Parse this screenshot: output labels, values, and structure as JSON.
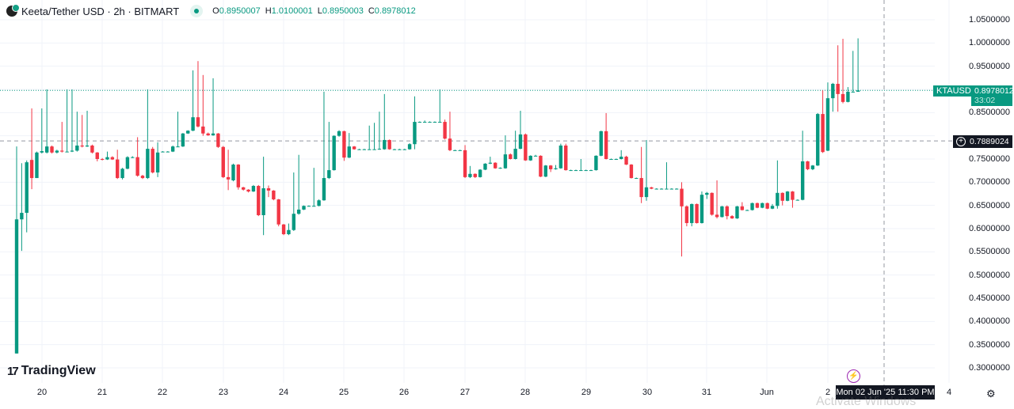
{
  "header": {
    "title": "Keeta/Tether USD · 2h · BITMART",
    "o_label": "O",
    "o": "0.8950007",
    "h_label": "H",
    "h": "1.0100001",
    "l_label": "L",
    "l": "0.8950003",
    "c_label": "C",
    "c": "0.8978012"
  },
  "price_axis": {
    "labels": [
      {
        "p": 1.05,
        "t": "1.0500000"
      },
      {
        "p": 1.0,
        "t": "1.0000000"
      },
      {
        "p": 0.95,
        "t": "0.9500000"
      },
      {
        "p": 0.85,
        "t": "0.8500000"
      },
      {
        "p": 0.75,
        "t": "0.7500000"
      },
      {
        "p": 0.7,
        "t": "0.7000000"
      },
      {
        "p": 0.65,
        "t": "0.6500000"
      },
      {
        "p": 0.6,
        "t": "0.6000000"
      },
      {
        "p": 0.55,
        "t": "0.5500000"
      },
      {
        "p": 0.5,
        "t": "0.5000000"
      },
      {
        "p": 0.45,
        "t": "0.4500000"
      },
      {
        "p": 0.4,
        "t": "0.4000000"
      },
      {
        "p": 0.35,
        "t": "0.3500000"
      },
      {
        "p": 0.3,
        "t": "0.3000000"
      }
    ]
  },
  "last_price": {
    "symbol": "KTAUSDT",
    "price": "0.8978012",
    "value": 0.8978012,
    "countdown": "33:02"
  },
  "crosshair": {
    "price": "0.7889024",
    "value": 0.7889024,
    "time": "Mon 02 Jun '25   11:30 PM"
  },
  "time_axis": {
    "labels": [
      "20",
      "21",
      "22",
      "23",
      "24",
      "25",
      "26",
      "27",
      "28",
      "29",
      "30",
      "31",
      "Jun",
      "2",
      "4"
    ]
  },
  "branding": {
    "logo": "TradingView"
  },
  "watermark": "Activate Windows",
  "colors": {
    "up": "#089981",
    "down": "#f23645",
    "grid": "#f0f3fa"
  },
  "chart_data": {
    "type": "candlestick",
    "interval": "2h",
    "ylim": [
      0.28,
      1.07
    ],
    "ohlc": [
      [
        0.331,
        0.777,
        0.331,
        0.62
      ],
      [
        0.62,
        0.741,
        0.552,
        0.634
      ],
      [
        0.634,
        0.747,
        0.592,
        0.743
      ],
      [
        0.748,
        0.859,
        0.685,
        0.709
      ],
      [
        0.709,
        0.766,
        0.709,
        0.764
      ],
      [
        0.764,
        0.859,
        0.762,
        0.767
      ],
      [
        0.764,
        0.9,
        0.762,
        0.777
      ],
      [
        0.777,
        0.779,
        0.762,
        0.764
      ],
      [
        0.764,
        0.77,
        0.762,
        0.768
      ],
      [
        0.768,
        0.83,
        0.764,
        0.766
      ],
      [
        0.766,
        0.9,
        0.765,
        0.766
      ],
      [
        0.766,
        0.9,
        0.765,
        0.768
      ],
      [
        0.768,
        0.852,
        0.766,
        0.779
      ],
      [
        0.779,
        0.845,
        0.775,
        0.777
      ],
      [
        0.777,
        0.854,
        0.776,
        0.779
      ],
      [
        0.779,
        0.781,
        0.762,
        0.764
      ],
      [
        0.764,
        0.765,
        0.745,
        0.75
      ],
      [
        0.75,
        0.752,
        0.747,
        0.749
      ],
      [
        0.749,
        0.766,
        0.748,
        0.754
      ],
      [
        0.754,
        0.756,
        0.748,
        0.749
      ],
      [
        0.749,
        0.77,
        0.707,
        0.709
      ],
      [
        0.709,
        0.731,
        0.706,
        0.729
      ],
      [
        0.729,
        0.756,
        0.728,
        0.754
      ],
      [
        0.754,
        0.756,
        0.752,
        0.754
      ],
      [
        0.754,
        0.797,
        0.712,
        0.714
      ],
      [
        0.714,
        0.716,
        0.707,
        0.709
      ],
      [
        0.709,
        0.9,
        0.707,
        0.772
      ],
      [
        0.772,
        0.776,
        0.719,
        0.721
      ],
      [
        0.721,
        0.786,
        0.711,
        0.764
      ],
      [
        0.766,
        0.767,
        0.765,
        0.766
      ],
      [
        0.766,
        0.767,
        0.765,
        0.766
      ],
      [
        0.766,
        0.779,
        0.765,
        0.777
      ],
      [
        0.777,
        0.852,
        0.776,
        0.777
      ],
      [
        0.777,
        0.806,
        0.776,
        0.805
      ],
      [
        0.805,
        0.812,
        0.804,
        0.811
      ],
      [
        0.811,
        0.941,
        0.81,
        0.84
      ],
      [
        0.84,
        0.961,
        0.818,
        0.82
      ],
      [
        0.82,
        0.931,
        0.8,
        0.805
      ],
      [
        0.805,
        0.807,
        0.8,
        0.801
      ],
      [
        0.801,
        0.924,
        0.8,
        0.805
      ],
      [
        0.805,
        0.806,
        0.774,
        0.776
      ],
      [
        0.776,
        0.778,
        0.709,
        0.711
      ],
      [
        0.711,
        0.77,
        0.683,
        0.706
      ],
      [
        0.704,
        0.74,
        0.702,
        0.738
      ],
      [
        0.738,
        0.739,
        0.684,
        0.689
      ],
      [
        0.689,
        0.69,
        0.682,
        0.684
      ],
      [
        0.684,
        0.685,
        0.678,
        0.68
      ],
      [
        0.68,
        0.694,
        0.679,
        0.692
      ],
      [
        0.692,
        0.694,
        0.627,
        0.629
      ],
      [
        0.629,
        0.755,
        0.586,
        0.687
      ],
      [
        0.687,
        0.693,
        0.668,
        0.682
      ],
      [
        0.682,
        0.683,
        0.661,
        0.663
      ],
      [
        0.663,
        0.664,
        0.605,
        0.609
      ],
      [
        0.609,
        0.61,
        0.586,
        0.588
      ],
      [
        0.588,
        0.611,
        0.586,
        0.597
      ],
      [
        0.597,
        0.721,
        0.595,
        0.632
      ],
      [
        0.632,
        0.759,
        0.63,
        0.641
      ],
      [
        0.641,
        0.65,
        0.64,
        0.649
      ],
      [
        0.649,
        0.65,
        0.648,
        0.649
      ],
      [
        0.649,
        0.731,
        0.648,
        0.649
      ],
      [
        0.649,
        0.663,
        0.648,
        0.661
      ],
      [
        0.661,
        0.895,
        0.66,
        0.709
      ],
      [
        0.709,
        0.83,
        0.707,
        0.726
      ],
      [
        0.726,
        0.801,
        0.725,
        0.8
      ],
      [
        0.8,
        0.812,
        0.798,
        0.81
      ],
      [
        0.81,
        0.811,
        0.746,
        0.753
      ],
      [
        0.753,
        0.806,
        0.752,
        0.777
      ],
      [
        0.777,
        0.778,
        0.77,
        0.771
      ],
      [
        0.771,
        0.772,
        0.77,
        0.771
      ],
      [
        0.771,
        0.772,
        0.77,
        0.771
      ],
      [
        0.771,
        0.822,
        0.77,
        0.771
      ],
      [
        0.771,
        0.828,
        0.77,
        0.771
      ],
      [
        0.771,
        0.852,
        0.77,
        0.772
      ],
      [
        0.771,
        0.89,
        0.77,
        0.791
      ],
      [
        0.791,
        0.792,
        0.77,
        0.771
      ],
      [
        0.771,
        0.772,
        0.77,
        0.771
      ],
      [
        0.771,
        0.772,
        0.77,
        0.771
      ],
      [
        0.771,
        0.772,
        0.77,
        0.771
      ],
      [
        0.771,
        0.784,
        0.77,
        0.782
      ],
      [
        0.782,
        0.885,
        0.771,
        0.83
      ],
      [
        0.83,
        0.831,
        0.829,
        0.83
      ],
      [
        0.83,
        0.833,
        0.829,
        0.83
      ],
      [
        0.83,
        0.831,
        0.829,
        0.83
      ],
      [
        0.83,
        0.831,
        0.829,
        0.83
      ],
      [
        0.83,
        0.9,
        0.829,
        0.83
      ],
      [
        0.83,
        0.835,
        0.792,
        0.794
      ],
      [
        0.794,
        0.852,
        0.767,
        0.769
      ],
      [
        0.769,
        0.77,
        0.768,
        0.769
      ],
      [
        0.769,
        0.77,
        0.768,
        0.769
      ],
      [
        0.769,
        0.78,
        0.709,
        0.711
      ],
      [
        0.711,
        0.735,
        0.709,
        0.718
      ],
      [
        0.718,
        0.719,
        0.709,
        0.711
      ],
      [
        0.711,
        0.728,
        0.71,
        0.727
      ],
      [
        0.727,
        0.741,
        0.726,
        0.74
      ],
      [
        0.74,
        0.755,
        0.739,
        0.742
      ],
      [
        0.742,
        0.743,
        0.729,
        0.73
      ],
      [
        0.73,
        0.732,
        0.729,
        0.731
      ],
      [
        0.73,
        0.801,
        0.729,
        0.76
      ],
      [
        0.76,
        0.762,
        0.749,
        0.75
      ],
      [
        0.75,
        0.811,
        0.749,
        0.772
      ],
      [
        0.772,
        0.854,
        0.771,
        0.803
      ],
      [
        0.803,
        0.805,
        0.746,
        0.747
      ],
      [
        0.747,
        0.758,
        0.746,
        0.757
      ],
      [
        0.757,
        0.759,
        0.756,
        0.757
      ],
      [
        0.757,
        0.758,
        0.711,
        0.712
      ],
      [
        0.712,
        0.737,
        0.711,
        0.736
      ],
      [
        0.736,
        0.737,
        0.722,
        0.728
      ],
      [
        0.728,
        0.737,
        0.727,
        0.73
      ],
      [
        0.73,
        0.783,
        0.729,
        0.779
      ],
      [
        0.779,
        0.783,
        0.725,
        0.726
      ],
      [
        0.726,
        0.727,
        0.725,
        0.726
      ],
      [
        0.726,
        0.727,
        0.725,
        0.726
      ],
      [
        0.726,
        0.75,
        0.725,
        0.726
      ],
      [
        0.726,
        0.727,
        0.725,
        0.726
      ],
      [
        0.726,
        0.727,
        0.725,
        0.726
      ],
      [
        0.726,
        0.758,
        0.725,
        0.757
      ],
      [
        0.757,
        0.811,
        0.756,
        0.81
      ],
      [
        0.81,
        0.849,
        0.749,
        0.75
      ],
      [
        0.75,
        0.751,
        0.749,
        0.75
      ],
      [
        0.75,
        0.751,
        0.749,
        0.75
      ],
      [
        0.75,
        0.769,
        0.749,
        0.755
      ],
      [
        0.755,
        0.757,
        0.737,
        0.738
      ],
      [
        0.738,
        0.739,
        0.708,
        0.709
      ],
      [
        0.709,
        0.71,
        0.708,
        0.709
      ],
      [
        0.709,
        0.776,
        0.655,
        0.668
      ],
      [
        0.668,
        0.791,
        0.66,
        0.689
      ],
      [
        0.689,
        0.69,
        0.685,
        0.686
      ],
      [
        0.686,
        0.687,
        0.685,
        0.686
      ],
      [
        0.686,
        0.687,
        0.685,
        0.686
      ],
      [
        0.686,
        0.743,
        0.685,
        0.686
      ],
      [
        0.686,
        0.687,
        0.685,
        0.686
      ],
      [
        0.686,
        0.687,
        0.685,
        0.686
      ],
      [
        0.686,
        0.7,
        0.54,
        0.648
      ],
      [
        0.648,
        0.65,
        0.605,
        0.612
      ],
      [
        0.612,
        0.654,
        0.605,
        0.653
      ],
      [
        0.653,
        0.654,
        0.611,
        0.612
      ],
      [
        0.612,
        0.68,
        0.611,
        0.673
      ],
      [
        0.673,
        0.679,
        0.664,
        0.677
      ],
      [
        0.677,
        0.678,
        0.628,
        0.63
      ],
      [
        0.63,
        0.704,
        0.622,
        0.625
      ],
      [
        0.625,
        0.649,
        0.624,
        0.648
      ],
      [
        0.648,
        0.65,
        0.62,
        0.627
      ],
      [
        0.627,
        0.629,
        0.621,
        0.622
      ],
      [
        0.622,
        0.649,
        0.621,
        0.648
      ],
      [
        0.648,
        0.657,
        0.639,
        0.64
      ],
      [
        0.64,
        0.641,
        0.639,
        0.64
      ],
      [
        0.64,
        0.656,
        0.639,
        0.655
      ],
      [
        0.655,
        0.656,
        0.644,
        0.645
      ],
      [
        0.645,
        0.656,
        0.644,
        0.655
      ],
      [
        0.655,
        0.656,
        0.642,
        0.643
      ],
      [
        0.643,
        0.653,
        0.642,
        0.649
      ],
      [
        0.649,
        0.747,
        0.643,
        0.677
      ],
      [
        0.677,
        0.678,
        0.65,
        0.66
      ],
      [
        0.66,
        0.681,
        0.659,
        0.68
      ],
      [
        0.68,
        0.681,
        0.645,
        0.662
      ],
      [
        0.662,
        0.663,
        0.661,
        0.662
      ],
      [
        0.662,
        0.811,
        0.661,
        0.745
      ],
      [
        0.745,
        0.746,
        0.726,
        0.728
      ],
      [
        0.728,
        0.737,
        0.726,
        0.736
      ],
      [
        0.736,
        0.849,
        0.735,
        0.847
      ],
      [
        0.847,
        0.898,
        0.763,
        0.765
      ],
      [
        0.768,
        0.915,
        0.767,
        0.881
      ],
      [
        0.881,
        0.914,
        0.852,
        0.912
      ],
      [
        0.912,
        0.995,
        0.852,
        0.89
      ],
      [
        0.89,
        1.009,
        0.87,
        0.873
      ],
      [
        0.873,
        0.905,
        0.872,
        0.895
      ],
      [
        0.895,
        0.983,
        0.894,
        0.895
      ],
      [
        0.8950007,
        1.0100001,
        0.8950003,
        0.8978012
      ]
    ]
  }
}
